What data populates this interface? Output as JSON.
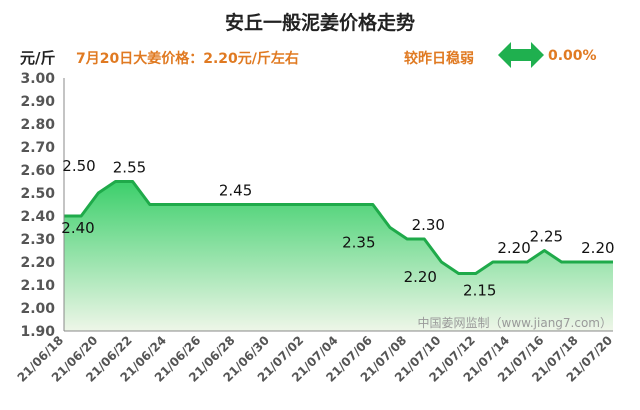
{
  "header": {
    "title": "安丘一般泥姜价格走势",
    "unit": "元/斤",
    "price_note": "7月20日大姜价格：2.20元/斤左右",
    "trend_label": "较昨日稳弱",
    "trend_icon": "double-arrow-icon",
    "change_pct": "0.00%"
  },
  "watermark": "中国姜网监制（www.jiang7.com）",
  "colors": {
    "line": "#1faa4a",
    "fill_top": "#3ccf6b",
    "fill_bottom": "#eef6e8",
    "accent": "#e07a22",
    "axis": "#888888",
    "icon": "#1fb04f"
  },
  "chart_data": {
    "type": "area",
    "ylim": [
      1.9,
      3.0
    ],
    "yticks": [
      "1.90",
      "2.00",
      "2.10",
      "2.20",
      "2.30",
      "2.40",
      "2.50",
      "2.60",
      "2.70",
      "2.80",
      "2.90",
      "3.00"
    ],
    "x_ticks": [
      "21/06/18",
      "21/06/20",
      "21/06/22",
      "21/06/24",
      "21/06/26",
      "21/06/28",
      "21/06/30",
      "21/07/02",
      "21/07/04",
      "21/07/06",
      "21/07/08",
      "21/07/10",
      "21/07/12",
      "21/07/14",
      "21/07/16",
      "21/07/18",
      "21/07/20"
    ],
    "x": [
      "21/06/18",
      "21/06/19",
      "21/06/20",
      "21/06/21",
      "21/06/22",
      "21/06/23",
      "21/06/24",
      "21/06/25",
      "21/06/26",
      "21/06/27",
      "21/06/28",
      "21/06/29",
      "21/06/30",
      "21/07/01",
      "21/07/02",
      "21/07/03",
      "21/07/04",
      "21/07/05",
      "21/07/06",
      "21/07/07",
      "21/07/08",
      "21/07/09",
      "21/07/10",
      "21/07/11",
      "21/07/12",
      "21/07/13",
      "21/07/14",
      "21/07/15",
      "21/07/16",
      "21/07/17",
      "21/07/18",
      "21/07/19",
      "21/07/20"
    ],
    "values": [
      2.4,
      2.4,
      2.5,
      2.55,
      2.55,
      2.45,
      2.45,
      2.45,
      2.45,
      2.45,
      2.45,
      2.45,
      2.45,
      2.45,
      2.45,
      2.45,
      2.45,
      2.45,
      2.45,
      2.35,
      2.3,
      2.3,
      2.2,
      2.15,
      2.15,
      2.2,
      2.2,
      2.2,
      2.25,
      2.2,
      2.2,
      2.2,
      2.2
    ],
    "data_labels": [
      {
        "x": "21/06/18",
        "text": "2.40"
      },
      {
        "x": "21/06/18",
        "text": "2.50"
      },
      {
        "x": "21/06/21",
        "text": "2.55"
      },
      {
        "x": "21/06/28",
        "text": "2.45"
      },
      {
        "x": "21/07/06",
        "text": "2.35"
      },
      {
        "x": "21/07/09",
        "text": "2.30"
      },
      {
        "x": "21/07/09",
        "text": "2.20"
      },
      {
        "x": "21/07/12",
        "text": "2.15"
      },
      {
        "x": "21/07/14",
        "text": "2.20"
      },
      {
        "x": "21/07/16",
        "text": "2.25"
      },
      {
        "x": "21/07/19",
        "text": "2.20"
      }
    ],
    "grid": false,
    "legend": "none"
  }
}
